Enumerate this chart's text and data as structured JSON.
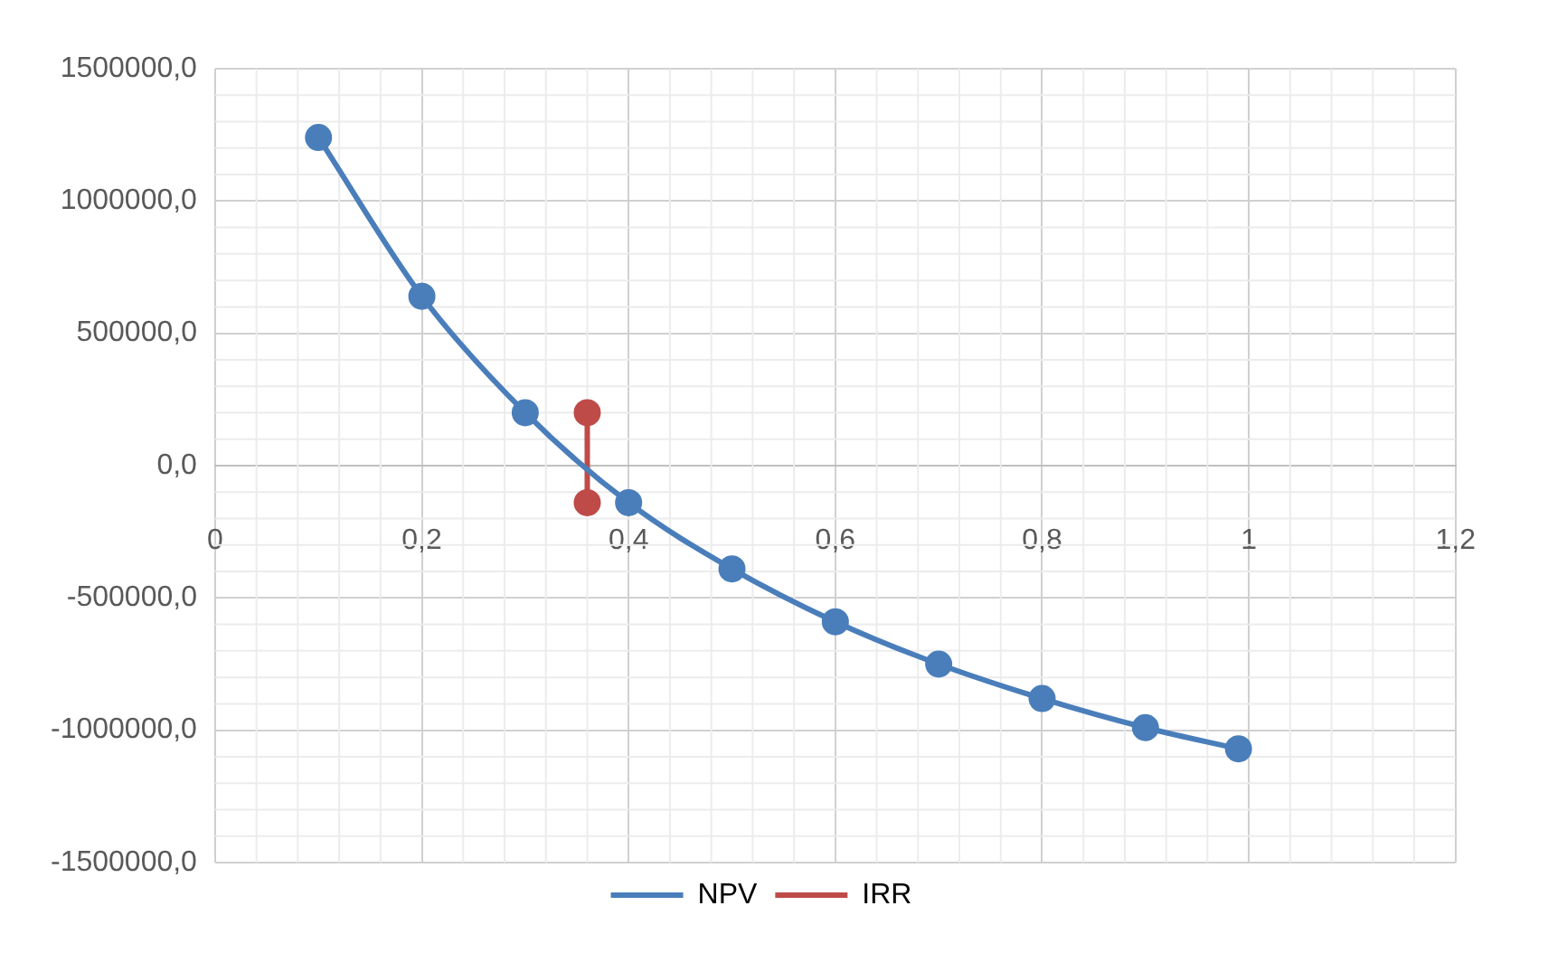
{
  "chart_data": {
    "type": "line",
    "series": [
      {
        "name": "NPV",
        "color": "#4a7ebb",
        "x": [
          0.1,
          0.2,
          0.3,
          0.4,
          0.5,
          0.6,
          0.7,
          0.8,
          0.9,
          0.99
        ],
        "values": [
          1240000,
          640000,
          200000,
          -140000,
          -390000,
          -590000,
          -750000,
          -880000,
          -990000,
          -1070000
        ]
      },
      {
        "name": "IRR",
        "color": "#be4b48",
        "x": [
          0.36,
          0.36
        ],
        "values": [
          200000,
          -140000
        ]
      }
    ],
    "xlim": [
      0,
      1.2
    ],
    "xticks": [
      {
        "value": 0,
        "label": "0"
      },
      {
        "value": 0.2,
        "label": "0,2"
      },
      {
        "value": 0.4,
        "label": "0,4"
      },
      {
        "value": 0.6,
        "label": "0,6"
      },
      {
        "value": 0.8,
        "label": "0,8"
      },
      {
        "value": 1,
        "label": "1"
      },
      {
        "value": 1.2,
        "label": "1,2"
      }
    ],
    "ylim": [
      -1500000,
      1500000
    ],
    "yticks": [
      {
        "value": -1500000,
        "label": "-1500000,0"
      },
      {
        "value": -1000000,
        "label": "-1000000,0"
      },
      {
        "value": -500000,
        "label": "-500000,0"
      },
      {
        "value": 0,
        "label": "0,0"
      },
      {
        "value": 500000,
        "label": "500000,0"
      },
      {
        "value": 1000000,
        "label": "1000000,0"
      },
      {
        "value": 1500000,
        "label": "1500000,0"
      }
    ],
    "grid": true,
    "legend": "bottom",
    "marker": "circle",
    "line_style": "solid"
  }
}
